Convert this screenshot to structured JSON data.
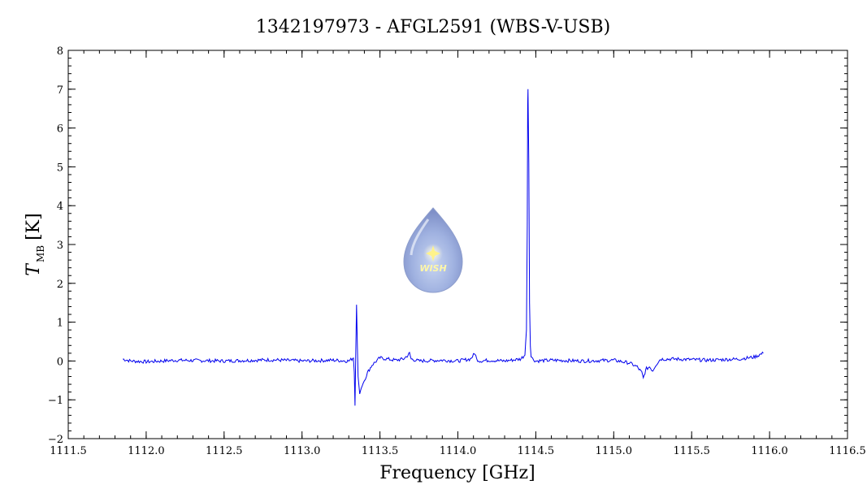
{
  "chart_data": {
    "type": "line",
    "title": "1342197973 - AFGL2591 (WBS-V-USB)",
    "xlabel": "Frequency [GHz]",
    "ylabel_main": "T",
    "ylabel_sub": "MB",
    "ylabel_unit": "[K]",
    "xlim": [
      1111.5,
      1116.5
    ],
    "ylim": [
      -2,
      8
    ],
    "x_ticks": [
      1111.5,
      1112.0,
      1112.5,
      1113.0,
      1113.5,
      1114.0,
      1114.5,
      1115.0,
      1115.5,
      1116.0,
      1116.5
    ],
    "x_tick_labels": [
      "1111.5",
      "1112.0",
      "1112.5",
      "1113.0",
      "1113.5",
      "1114.0",
      "1114.5",
      "1115.0",
      "1115.5",
      "1116.0",
      "1116.5"
    ],
    "y_ticks": [
      -2,
      -1,
      0,
      1,
      2,
      3,
      4,
      5,
      6,
      7,
      8
    ],
    "y_tick_labels": [
      "−2",
      "−1",
      "0",
      "1",
      "2",
      "3",
      "4",
      "5",
      "6",
      "7",
      "8"
    ],
    "grid": false,
    "line_color": "#0000ee",
    "logo_text": "WISH",
    "series": [
      {
        "x": [
          1111.85,
          1111.9,
          1112.0,
          1112.2,
          1112.5,
          1112.8,
          1113.0,
          1113.2,
          1113.3,
          1113.32,
          1113.33,
          1113.335,
          1113.34,
          1113.345,
          1113.35,
          1113.355,
          1113.36,
          1113.37,
          1113.38,
          1113.4,
          1113.42,
          1113.45,
          1113.5,
          1113.55,
          1113.6,
          1113.65,
          1113.68,
          1113.69,
          1113.7,
          1113.75,
          1113.9,
          1114.0,
          1114.08,
          1114.1,
          1114.11,
          1114.12,
          1114.14,
          1114.2,
          1114.3,
          1114.4,
          1114.43,
          1114.44,
          1114.445,
          1114.448,
          1114.45,
          1114.455,
          1114.46,
          1114.465,
          1114.47,
          1114.48,
          1114.5,
          1114.6,
          1114.8,
          1115.0,
          1115.1,
          1115.15,
          1115.18,
          1115.19,
          1115.2,
          1115.21,
          1115.23,
          1115.25,
          1115.27,
          1115.3,
          1115.4,
          1115.6,
          1115.8,
          1115.9,
          1115.96
        ],
        "y": [
          0.05,
          0.0,
          -0.02,
          0.02,
          0.0,
          0.03,
          0.0,
          0.02,
          0.0,
          0.05,
          0.1,
          -0.3,
          -1.15,
          0.3,
          1.45,
          0.4,
          -0.4,
          -0.85,
          -0.7,
          -0.5,
          -0.3,
          -0.1,
          0.08,
          0.05,
          0.02,
          0.05,
          0.15,
          0.2,
          0.05,
          0.0,
          0.02,
          0.0,
          0.05,
          0.15,
          0.2,
          0.05,
          0.0,
          0.02,
          0.0,
          0.05,
          0.15,
          0.8,
          3.5,
          6.6,
          7.0,
          5.1,
          1.5,
          0.4,
          0.15,
          0.05,
          0.0,
          0.02,
          0.0,
          0.02,
          -0.05,
          -0.15,
          -0.3,
          -0.45,
          -0.3,
          -0.2,
          -0.15,
          -0.25,
          -0.1,
          0.05,
          0.05,
          0.02,
          0.05,
          0.1,
          0.2
        ]
      }
    ]
  }
}
